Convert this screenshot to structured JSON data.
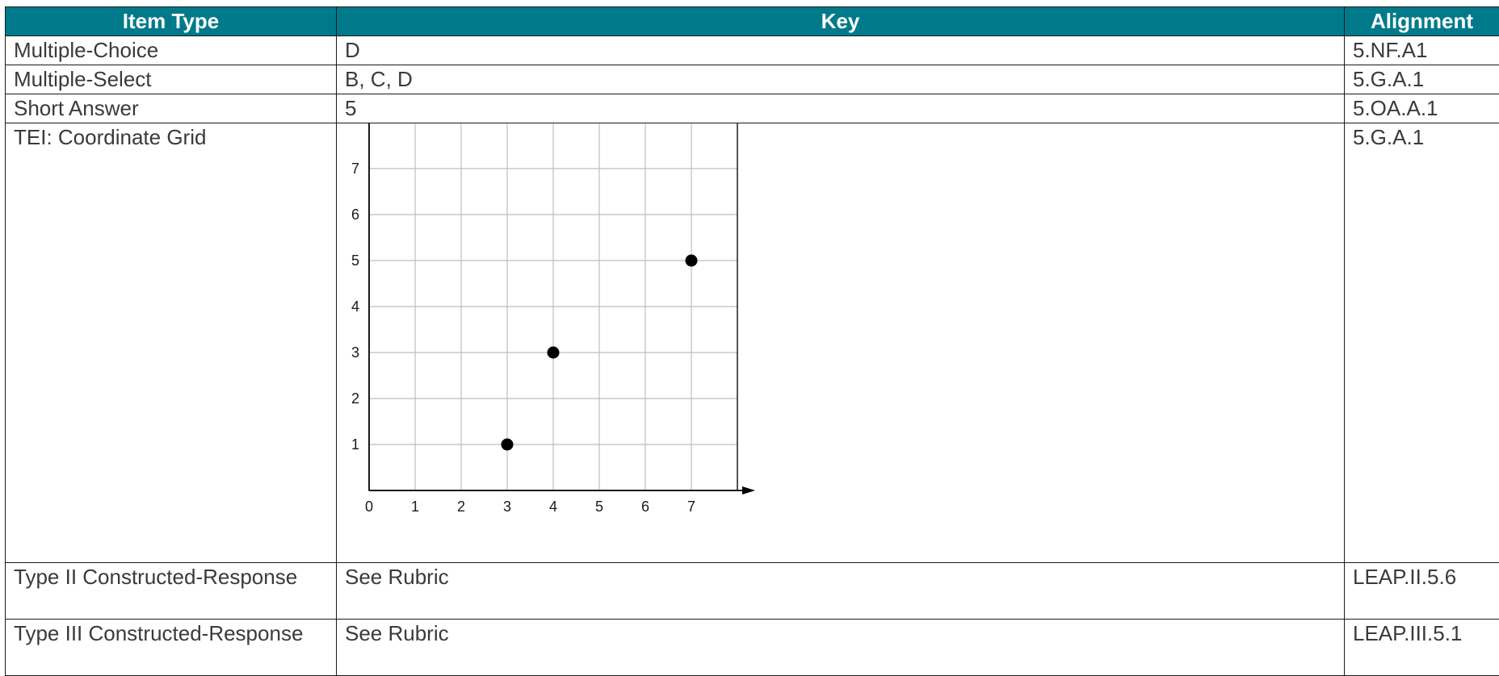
{
  "headers": {
    "item_type": "Item Type",
    "key": "Key",
    "alignment": "Alignment"
  },
  "rows": [
    {
      "item_type": "Multiple-Choice",
      "key": "D",
      "alignment": "5.NF.A1"
    },
    {
      "item_type": "Multiple-Select",
      "key": "B, C, D",
      "alignment": "5.G.A.1"
    },
    {
      "item_type": "Short Answer",
      "key": "5",
      "alignment": "5.OA.A.1"
    },
    {
      "item_type": "TEI: Coordinate Grid",
      "key": "",
      "alignment": "5.G.A.1"
    },
    {
      "item_type": "Type II Constructed-Response",
      "key": "See Rubric",
      "alignment": "LEAP.II.5.6"
    },
    {
      "item_type": "Type III Constructed-Response",
      "key": "See Rubric",
      "alignment": "LEAP.III.5.1"
    }
  ],
  "chart_data": {
    "type": "scatter",
    "x_ticks": [
      "0",
      "1",
      "2",
      "3",
      "4",
      "5",
      "6",
      "7"
    ],
    "y_ticks": [
      "1",
      "2",
      "3",
      "4",
      "5",
      "6",
      "7"
    ],
    "xlim": [
      0,
      8
    ],
    "ylim": [
      0,
      8
    ],
    "grid": true,
    "points": [
      {
        "x": 3,
        "y": 1
      },
      {
        "x": 4,
        "y": 3
      },
      {
        "x": 7,
        "y": 5
      }
    ]
  },
  "colors": {
    "header_bg": "#007A8A",
    "header_text": "#ffffff",
    "grid_line": "#bdbdbd",
    "point": "#000000"
  }
}
